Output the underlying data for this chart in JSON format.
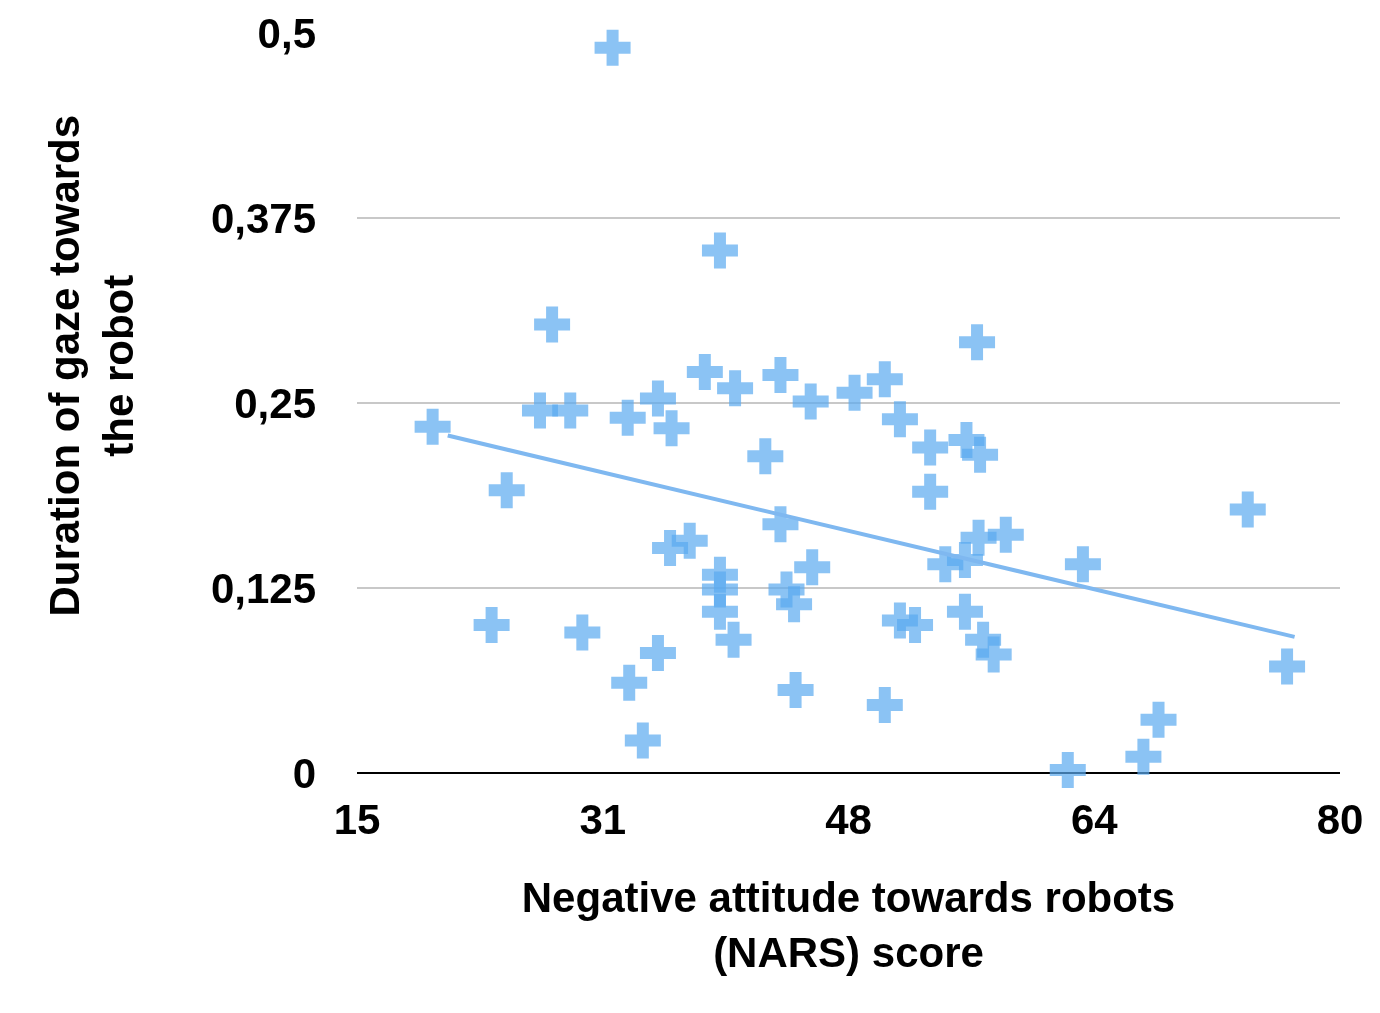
{
  "chart_data": {
    "type": "scatter",
    "xlabel": "Negative attitude towards robots (NARS) score",
    "ylabel": "Duration of gaze towards the robot",
    "xlim": [
      15,
      80
    ],
    "xticks": [
      15,
      {
        "value": 31.25,
        "label": "31"
      },
      {
        "value": 47.5,
        "label": "48"
      },
      {
        "value": 63.75,
        "label": "64"
      },
      80
    ],
    "ylim": [
      0,
      0.5
    ],
    "yticks": [
      {
        "value": 0,
        "label": "0"
      },
      {
        "value": 0.125,
        "label": "0,125"
      },
      {
        "value": 0.25,
        "label": "0,25"
      },
      {
        "value": 0.375,
        "label": "0,375"
      },
      {
        "value": 0.5,
        "label": "0,5"
      }
    ],
    "grid": "y",
    "legend": false,
    "series": [
      {
        "type": "scatter",
        "marker": "cross",
        "color": "#5aaaf0",
        "x": [
          31.9,
          39.0,
          27.9,
          56.0,
          38.0,
          40.0,
          43.0,
          49.9,
          47.9,
          45.0,
          34.9,
          27.1,
          29.1,
          32.9,
          35.8,
          20.0,
          50.9,
          52.9,
          55.3,
          56.2,
          42.0,
          52.9,
          24.9,
          73.9,
          43.0,
          37.0,
          35.7,
          56.1,
          57.9,
          55.2,
          53.9,
          45.1,
          39.0,
          63.0,
          39.0,
          43.4,
          43.9,
          39.0,
          55.2,
          50.9,
          51.9,
          23.9,
          29.9,
          39.9,
          56.4,
          57.1,
          34.9,
          33.0,
          76.5,
          44.0,
          49.9,
          33.9,
          68.0,
          67.0,
          62.0
        ],
        "values": [
          0.49,
          0.353,
          0.303,
          0.291,
          0.271,
          0.26,
          0.269,
          0.266,
          0.257,
          0.251,
          0.253,
          0.245,
          0.245,
          0.24,
          0.233,
          0.234,
          0.239,
          0.22,
          0.225,
          0.215,
          0.214,
          0.19,
          0.191,
          0.178,
          0.168,
          0.157,
          0.152,
          0.159,
          0.161,
          0.144,
          0.141,
          0.139,
          0.134,
          0.141,
          0.124,
          0.124,
          0.114,
          0.109,
          0.109,
          0.103,
          0.1,
          0.1,
          0.095,
          0.09,
          0.09,
          0.08,
          0.081,
          0.061,
          0.072,
          0.056,
          0.046,
          0.022,
          0.036,
          0.011,
          0.002
        ]
      },
      {
        "type": "line",
        "marker": "none",
        "line_style": "solid",
        "color": "#7fb8f0",
        "x": [
          21.0,
          77.0
        ],
        "values": [
          0.228,
          0.092
        ]
      }
    ]
  }
}
